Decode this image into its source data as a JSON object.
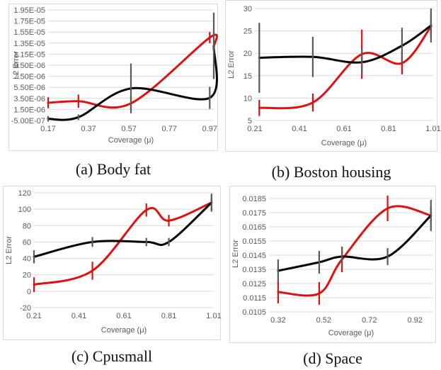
{
  "colors": {
    "red": "#e01010",
    "black": "#000000",
    "redbar": "#e01010",
    "blackbar": "#595959"
  },
  "panels": [
    {
      "caption": "(a) Body fat",
      "xlabel": "Coverage (μ)",
      "ylabel": "L2 Error",
      "xticks": [
        "0.17",
        "0.37",
        "0.57",
        "0.77",
        "0.97"
      ],
      "yticks": [
        "-5.00E-07",
        "1.50E-06",
        "3.50E-06",
        "5.50E-06",
        "7.50E-06",
        "9.50E-06",
        "1.15E-05",
        "1.35E-05",
        "1.55E-05",
        "1.75E-05",
        "1.95E-05"
      ],
      "chart_data": {
        "type": "line",
        "title": "",
        "xlabel": "Coverage (μ)",
        "ylabel": "L2 Error",
        "xlim": [
          0.17,
          0.99
        ],
        "ylim": [
          -5e-07,
          1.95e-05
        ],
        "series": [
          {
            "color": "red",
            "x": [
              0.17,
              0.32,
              0.58,
              0.97,
              0.99
            ],
            "y": [
              2.7e-06,
              3e-06,
              2.6e-06,
              1.45e-05,
              1.28e-05
            ],
            "err": [
              1e-06,
              1.2e-06,
              1.3e-06,
              1e-06,
              0
            ]
          },
          {
            "color": "black",
            "x": [
              0.17,
              0.32,
              0.58,
              0.97,
              0.99
            ],
            "y": [
              -2e-07,
              1e-07,
              5.3e-06,
              3.6e-06,
              1.3e-05
            ],
            "err": [
              5e-07,
              5e-07,
              4.5e-06,
              2e-06,
              6e-06
            ]
          }
        ]
      }
    },
    {
      "caption": "(b) Boston housing",
      "xlabel": "Coverage (μ)",
      "ylabel": "L2 Error",
      "xticks": [
        "0.21",
        "0.41",
        "0.61",
        "0.81",
        "1.01"
      ],
      "yticks": [
        "5",
        "10",
        "15",
        "20",
        "25",
        "30"
      ],
      "chart_data": {
        "type": "line",
        "title": "",
        "xlabel": "Coverage (μ)",
        "ylabel": "L2 Error",
        "xlim": [
          0.21,
          1.01
        ],
        "ylim": [
          5,
          30
        ],
        "series": [
          {
            "color": "red",
            "x": [
              0.23,
              0.47,
              0.69,
              0.87,
              1.0
            ],
            "y": [
              7.8,
              9.0,
              19.8,
              17.8,
              26.0
            ],
            "err": [
              1.8,
              2.0,
              5.5,
              2.5,
              2.5
            ]
          },
          {
            "color": "black",
            "x": [
              0.23,
              0.47,
              0.69,
              0.87,
              1.0
            ],
            "y": [
              19.0,
              19.2,
              18.0,
              21.7,
              26.2
            ],
            "err": [
              7.8,
              4.5,
              3.0,
              4.0,
              3.8
            ]
          }
        ]
      }
    },
    {
      "caption": "(c) Cpusmall",
      "xlabel": "Coverage (μ)",
      "ylabel": "L2 Error",
      "xticks": [
        "0.21",
        "0.41",
        "0.61",
        "0.81",
        "1.01"
      ],
      "yticks": [
        "-20",
        "0",
        "20",
        "40",
        "60",
        "80",
        "100",
        "120"
      ],
      "chart_data": {
        "type": "line",
        "title": "",
        "xlabel": "Coverage (μ)",
        "ylabel": "L2 Error",
        "xlim": [
          0.21,
          1.01
        ],
        "ylim": [
          -20,
          120
        ],
        "series": [
          {
            "color": "red",
            "x": [
              0.21,
              0.47,
              0.71,
              0.81,
              1.0
            ],
            "y": [
              8,
              25,
              99,
              86,
              108
            ],
            "err": [
              9,
              11,
              8,
              7,
              9
            ]
          },
          {
            "color": "black",
            "x": [
              0.21,
              0.47,
              0.71,
              0.81,
              1.0
            ],
            "y": [
              42,
              60,
              60,
              60,
              108
            ],
            "err": [
              8,
              6,
              5,
              5,
              11
            ]
          }
        ]
      }
    },
    {
      "caption": "(d) Space",
      "xlabel": "Coverage (μ)",
      "ylabel": "L2 Error",
      "xticks": [
        "0.32",
        "0.52",
        "0.72",
        "0.92"
      ],
      "yticks": [
        "0.0105",
        "0.0115",
        "0.0125",
        "0.0135",
        "0.0145",
        "0.0155",
        "0.0165",
        "0.0175",
        "0.0185"
      ],
      "chart_data": {
        "type": "line",
        "title": "",
        "xlabel": "Coverage (μ)",
        "ylabel": "L2 Error",
        "xlim": [
          0.28,
          1.0
        ],
        "ylim": [
          0.0105,
          0.0187
        ],
        "series": [
          {
            "color": "red",
            "x": [
              0.32,
              0.5,
              0.6,
              0.8,
              0.99
            ],
            "y": [
              0.0119,
              0.0118,
              0.0142,
              0.0178,
              0.0173
            ],
            "err": [
              0.0008,
              0.0008,
              0.0009,
              0.0009,
              0.0006
            ]
          },
          {
            "color": "black",
            "x": [
              0.32,
              0.5,
              0.6,
              0.8,
              0.99
            ],
            "y": [
              0.0134,
              0.014,
              0.0144,
              0.0144,
              0.0173
            ],
            "err": [
              0.0008,
              0.0008,
              0.0007,
              0.0006,
              0.0011
            ]
          }
        ]
      }
    }
  ]
}
